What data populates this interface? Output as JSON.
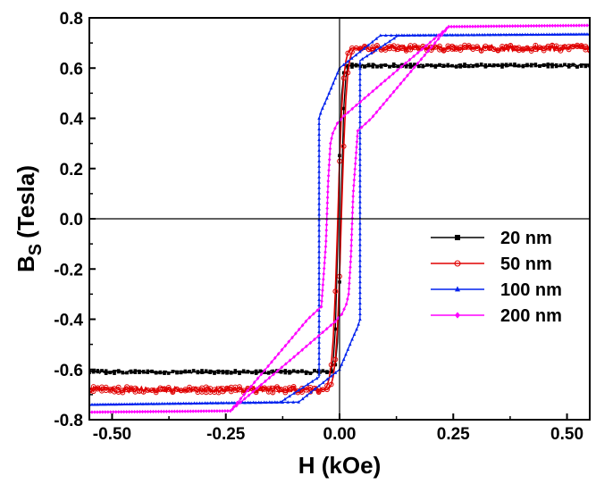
{
  "chart_data": {
    "type": "line",
    "title": "",
    "xlabel": "H (kOe)",
    "ylabel_main": "B",
    "ylabel_sub": "S",
    "ylabel_unit": "(Tesla)",
    "xlim": [
      -0.55,
      0.55
    ],
    "ylim": [
      -0.8,
      0.8
    ],
    "xticks": [
      -0.5,
      -0.25,
      0.0,
      0.25,
      0.5
    ],
    "xtick_labels": [
      "-0.50",
      "-0.25",
      "0.00",
      "0.25",
      "0.50"
    ],
    "yticks": [
      -0.8,
      -0.6,
      -0.4,
      -0.2,
      0.0,
      0.2,
      0.4,
      0.6,
      0.8
    ],
    "ytick_labels": [
      "-0.8",
      "-0.6",
      "-0.4",
      "-0.2",
      "0.0",
      "0.2",
      "0.4",
      "0.6",
      "0.8"
    ],
    "zero_lines": true,
    "legend_position": "lower-right",
    "series": [
      {
        "name": "20 nm",
        "color": "#000000",
        "marker": "square",
        "Ms": 0.61,
        "saturation_field": 0.018,
        "coercivity": 0.003,
        "noise": 0.006
      },
      {
        "name": "50 nm",
        "color": "#e00000",
        "marker": "circle",
        "Ms": 0.68,
        "saturation_field": 0.03,
        "coercivity": 0.004,
        "noise": 0.012
      },
      {
        "name": "100 nm",
        "color": "#0022ee",
        "marker": "triangle",
        "Ms": 0.735,
        "saturation_field": 0.13,
        "coercivity": 0.005,
        "upper_branch": [
          [
            0.55,
            0.735
          ],
          [
            0.09,
            0.73
          ],
          [
            0.0,
            0.6
          ],
          [
            -0.03,
            0.47
          ],
          [
            -0.04,
            0.43
          ],
          [
            -0.045,
            0.4
          ],
          [
            -0.045,
            -0.63
          ],
          [
            -0.13,
            -0.73
          ],
          [
            -0.55,
            -0.74
          ]
        ],
        "lower_branch": [
          [
            -0.55,
            -0.74
          ],
          [
            -0.09,
            -0.73
          ],
          [
            0.0,
            -0.6
          ],
          [
            0.03,
            -0.47
          ],
          [
            0.04,
            -0.43
          ],
          [
            0.045,
            -0.4
          ],
          [
            0.045,
            0.63
          ],
          [
            0.13,
            0.73
          ],
          [
            0.55,
            0.735
          ]
        ]
      },
      {
        "name": "200 nm",
        "color": "#ff00ff",
        "marker": "diamond",
        "Ms": 0.77,
        "saturation_field": 0.24,
        "coercivity": 0.02,
        "upper_branch": [
          [
            0.55,
            0.77
          ],
          [
            0.24,
            0.765
          ],
          [
            0.1,
            0.55
          ],
          [
            0.01,
            0.41
          ],
          [
            -0.005,
            0.38
          ],
          [
            -0.015,
            0.34
          ],
          [
            -0.02,
            0.3
          ],
          [
            -0.025,
            0.15
          ],
          [
            -0.03,
            -0.1
          ],
          [
            -0.04,
            -0.35
          ],
          [
            -0.07,
            -0.4
          ],
          [
            -0.24,
            -0.765
          ],
          [
            -0.55,
            -0.77
          ]
        ],
        "lower_branch": [
          [
            -0.55,
            -0.77
          ],
          [
            -0.24,
            -0.765
          ],
          [
            -0.1,
            -0.55
          ],
          [
            -0.01,
            -0.41
          ],
          [
            0.005,
            -0.38
          ],
          [
            0.015,
            -0.34
          ],
          [
            0.02,
            -0.3
          ],
          [
            0.025,
            -0.15
          ],
          [
            0.03,
            0.1
          ],
          [
            0.04,
            0.35
          ],
          [
            0.07,
            0.4
          ],
          [
            0.24,
            0.765
          ],
          [
            0.55,
            0.77
          ]
        ]
      }
    ]
  }
}
